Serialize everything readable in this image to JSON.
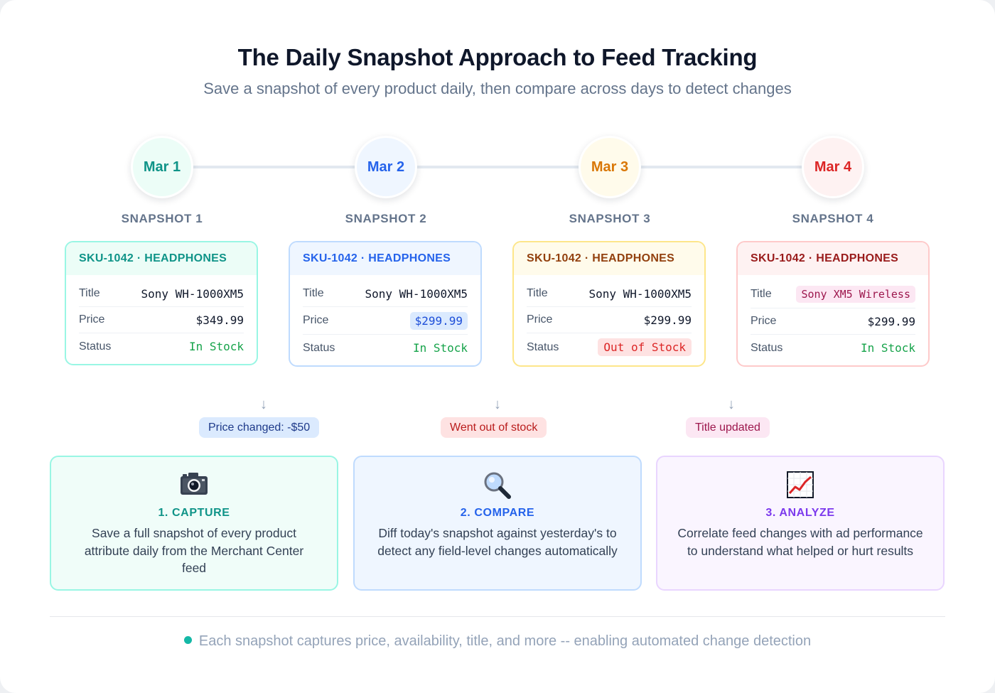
{
  "title": "The Daily Snapshot Approach to Feed Tracking",
  "subtitle": "Save a snapshot of every product daily, then compare across days to detect changes",
  "days": [
    {
      "date": "Mar 1",
      "snapshot": "SNAPSHOT 1",
      "color": "#0f9488",
      "bg": "#ecfdf7"
    },
    {
      "date": "Mar 2",
      "snapshot": "SNAPSHOT 2",
      "color": "#2563eb",
      "bg": "#eff6ff"
    },
    {
      "date": "Mar 3",
      "snapshot": "SNAPSHOT 3",
      "color": "#d97706",
      "bg": "#fffbeb"
    },
    {
      "date": "Mar 4",
      "snapshot": "SNAPSHOT 4",
      "color": "#dc2626",
      "bg": "#fef2f2"
    }
  ],
  "cards": [
    {
      "header": "SKU-1042 · HEADPHONES",
      "title_label": "Title",
      "title_value": "Sony WH-1000XM5",
      "price_label": "Price",
      "price_value": "$349.99",
      "status_label": "Status",
      "status_value": "In Stock"
    },
    {
      "header": "SKU-1042 · HEADPHONES",
      "title_label": "Title",
      "title_value": "Sony WH-1000XM5",
      "price_label": "Price",
      "price_value": "$299.99",
      "status_label": "Status",
      "status_value": "In Stock"
    },
    {
      "header": "SKU-1042 · HEADPHONES",
      "title_label": "Title",
      "title_value": "Sony WH-1000XM5",
      "price_label": "Price",
      "price_value": "$299.99",
      "status_label": "Status",
      "status_value": "Out of Stock"
    },
    {
      "header": "SKU-1042 · HEADPHONES",
      "title_label": "Title",
      "title_value": "Sony XM5 Wireless",
      "price_label": "Price",
      "price_value": "$299.99",
      "status_label": "Status",
      "status_value": "In Stock"
    }
  ],
  "changes": [
    {
      "label": "Price changed: -$50",
      "color": "#1e3a8a",
      "bg": "#dbeafe"
    },
    {
      "label": "Went out of stock",
      "color": "#b91c1c",
      "bg": "#fee2e2"
    },
    {
      "label": "Title updated",
      "color": "#9d174d",
      "bg": "#fce7f3"
    }
  ],
  "steps": [
    {
      "icon": "camera-icon",
      "title": "1. CAPTURE",
      "description": "Save a full snapshot of every product attribute daily from the Merchant Center feed",
      "color": "#0f9488",
      "bg": "#f0fdf9",
      "border": "#99f6e4"
    },
    {
      "icon": "magnifier-icon",
      "title": "2. COMPARE",
      "description": "Diff today's snapshot against yesterday's to detect any field-level changes automatically",
      "color": "#2563eb",
      "bg": "#eff6ff",
      "border": "#bfdbfe"
    },
    {
      "icon": "chart-icon",
      "title": "3. ANALYZE",
      "description": "Correlate feed changes with ad performance to understand what helped or hurt results",
      "color": "#7c3aed",
      "bg": "#faf5ff",
      "border": "#e9d5ff"
    }
  ],
  "footer": "Each snapshot captures price, availability, title, and more -- enabling automated change detection"
}
